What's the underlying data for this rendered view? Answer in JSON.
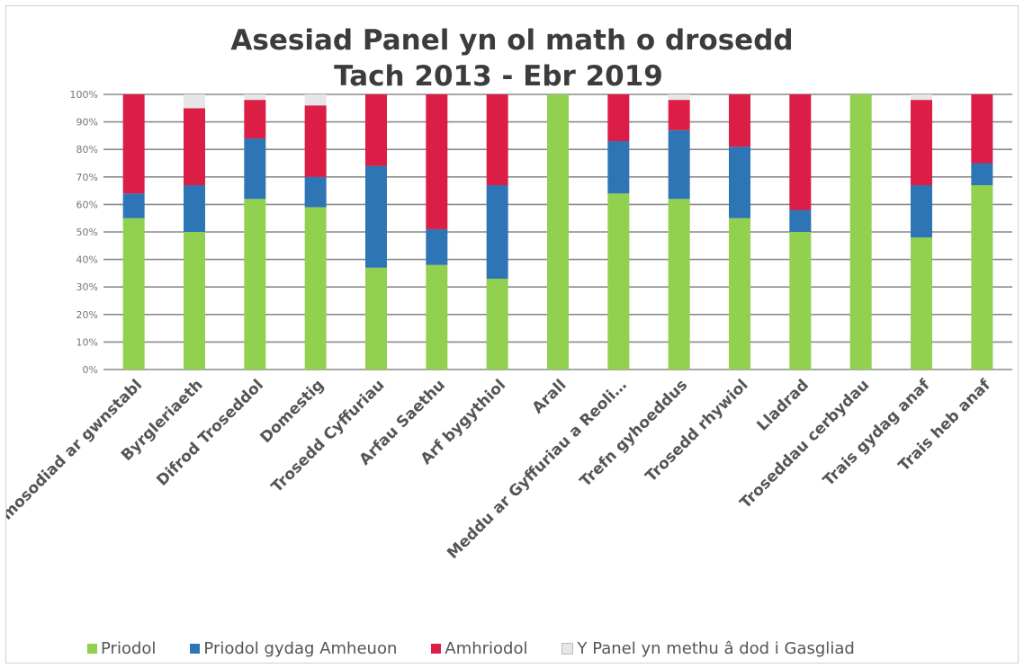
{
  "chart_data": {
    "type": "bar",
    "stacked": true,
    "title": "Asesiad Panel yn ol math o drosedd",
    "subtitle": "Tach 2013 - Ebr 2019",
    "xlabel": "",
    "ylabel": "",
    "ylim": [
      0,
      100
    ],
    "y_ticks": [
      "0%",
      "10%",
      "20%",
      "30%",
      "40%",
      "50%",
      "60%",
      "70%",
      "80%",
      "90%",
      "100%"
    ],
    "grid": true,
    "legend_position": "bottom",
    "categories": [
      "Ymosodiad ar gwnstabl",
      "Byrgleriaeth",
      "Difrod Troseddol",
      "Domestig",
      "Trosedd Cyffuriau",
      "Arfau Saethu",
      "Arf bygythiol",
      "Arall",
      "Meddu ar Gyffuriau a Reoli…",
      "Trefn gyhoeddus",
      "Trosedd rhywiol",
      "Lladrad",
      "Troseddau cerbydau",
      "Trais gydag anaf",
      "Trais heb anaf"
    ],
    "series": [
      {
        "name": "Priodol",
        "color": "#92d050",
        "values": [
          55,
          50,
          62,
          59,
          37,
          38,
          33,
          100,
          64,
          62,
          55,
          50,
          100,
          48,
          67
        ]
      },
      {
        "name": "Priodol gydag Amheuon",
        "color": "#2e75b6",
        "values": [
          9,
          17,
          22,
          11,
          37,
          13,
          34,
          0,
          19,
          25,
          26,
          8,
          0,
          19,
          8
        ]
      },
      {
        "name": "Amhriodol",
        "color": "#dc1e46",
        "values": [
          36,
          28,
          14,
          26,
          26,
          49,
          33,
          0,
          17,
          11,
          19,
          42,
          0,
          31,
          25
        ]
      },
      {
        "name": "Y Panel yn methu â dod i Gasgliad",
        "color": "#e6e6e6",
        "values": [
          0,
          5,
          2,
          4,
          0,
          0,
          0,
          0,
          0,
          2,
          0,
          0,
          0,
          2,
          0
        ]
      }
    ]
  }
}
